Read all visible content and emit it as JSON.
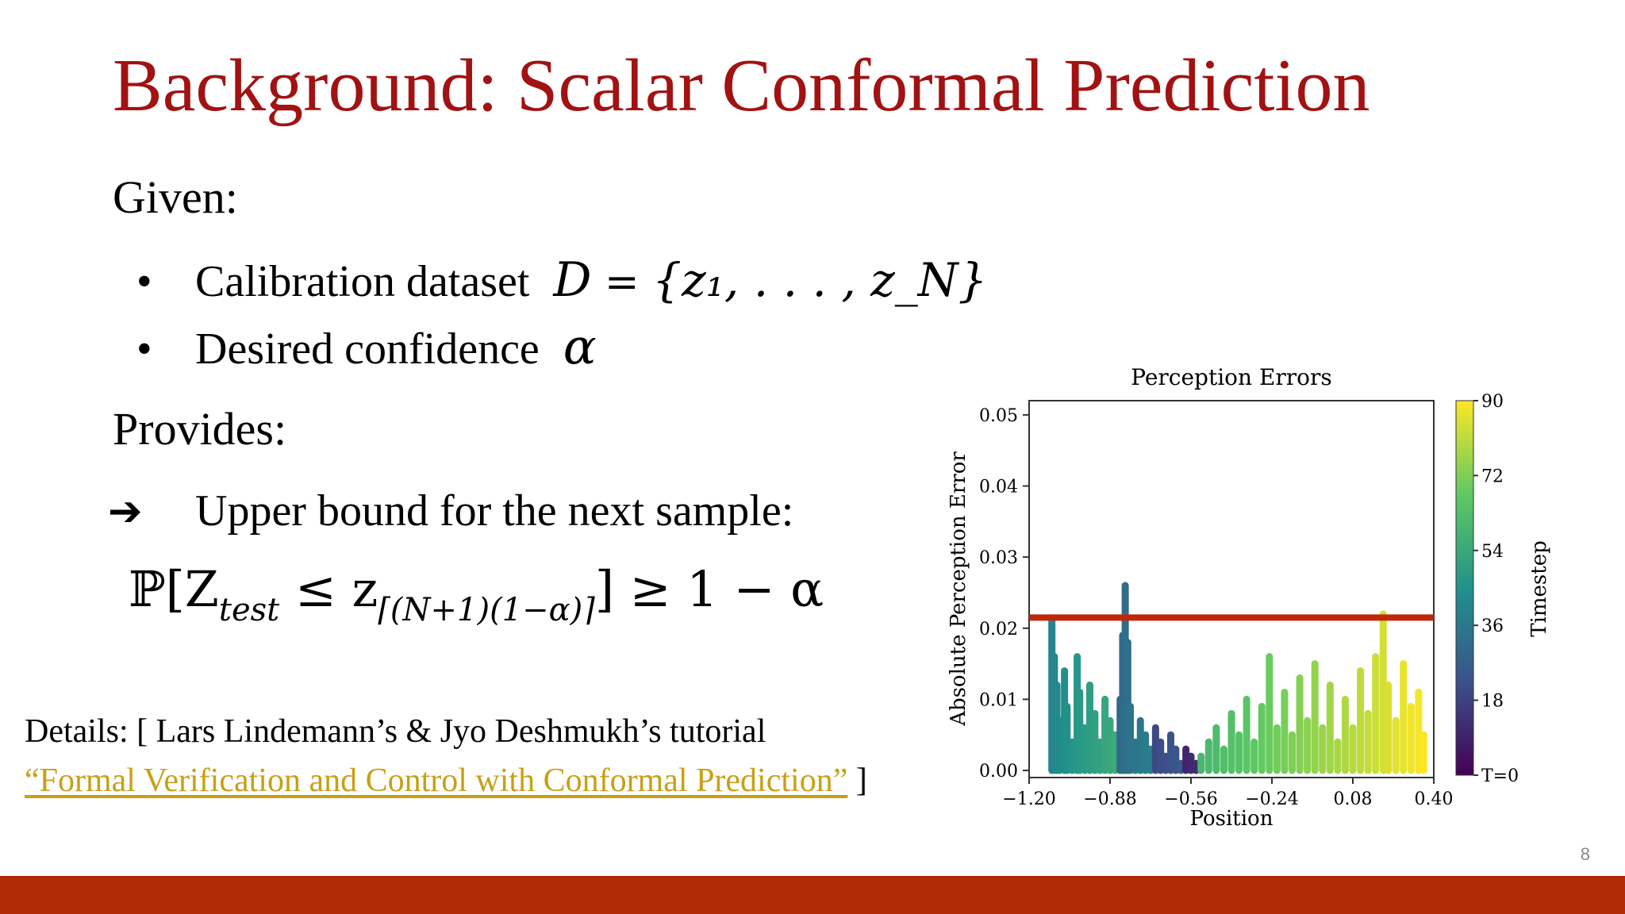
{
  "slide": {
    "title": "Background: Scalar Conformal Prediction",
    "given_label": "Given:",
    "bullet_char": "•",
    "bullet1_text": "Calibration dataset",
    "bullet1_math_D": "D",
    "bullet1_math_eq": " = ",
    "bullet1_math_set": "{z₁, . . . , z_N}",
    "bullet2_text": "Desired confidence",
    "bullet2_math": "α",
    "provides_label": "Provides:",
    "arrow_char": "➔",
    "arrow_text": "Upper bound for the next sample:",
    "formula_main": "ℙ[Z",
    "formula_sub1": "test",
    "formula_mid": " ≤ z",
    "formula_sub2": "⌈(N+1)(1−α)⌉",
    "formula_end": "] ≥ 1 − α",
    "details_line1": "Details: [ Lars Lindemann’s & Jyo Deshmukh’s tutorial",
    "details_link": "“Formal Verification and Control with Conformal Prediction”",
    "details_end": " ]",
    "page_number": "8"
  },
  "colors": {
    "title": "#a21212",
    "link": "#c8a016",
    "footer_bar": "#b02a05",
    "threshold_line": "#c0280a"
  },
  "chart_data": {
    "type": "scatter",
    "title": "Perception Errors",
    "xlabel": "Position",
    "ylabel": "Absolute Perception Error",
    "xlim": [
      -1.2,
      0.4
    ],
    "ylim": [
      -0.001,
      0.052
    ],
    "xticks": [
      "−1.20",
      "−0.88",
      "−0.56",
      "−0.24",
      "0.08",
      "0.40"
    ],
    "xtick_values": [
      -1.2,
      -0.88,
      -0.56,
      -0.24,
      0.08,
      0.4
    ],
    "yticks": [
      "0.00",
      "0.01",
      "0.02",
      "0.03",
      "0.04",
      "0.05"
    ],
    "ytick_values": [
      0.0,
      0.01,
      0.02,
      0.03,
      0.04,
      0.05
    ],
    "threshold": 0.0215,
    "colorbar": {
      "label": "Timestep",
      "ticks": [
        "T=0",
        "18",
        "36",
        "54",
        "72",
        "90"
      ],
      "tick_values": [
        0,
        18,
        36,
        54,
        72,
        90
      ],
      "colormap": "viridis"
    },
    "series": [
      {
        "points": [
          {
            "x": -1.11,
            "y": 0.021,
            "t": 40
          },
          {
            "x": -1.1,
            "y": 0.016,
            "t": 41
          },
          {
            "x": -1.09,
            "y": 0.012,
            "t": 42
          },
          {
            "x": -1.08,
            "y": 0.007,
            "t": 43
          },
          {
            "x": -1.06,
            "y": 0.014,
            "t": 44
          },
          {
            "x": -1.05,
            "y": 0.009,
            "t": 45
          },
          {
            "x": -1.03,
            "y": 0.004,
            "t": 46
          },
          {
            "x": -1.01,
            "y": 0.016,
            "t": 47
          },
          {
            "x": -1.0,
            "y": 0.011,
            "t": 48
          },
          {
            "x": -0.98,
            "y": 0.006,
            "t": 49
          },
          {
            "x": -0.96,
            "y": 0.012,
            "t": 50
          },
          {
            "x": -0.94,
            "y": 0.008,
            "t": 51
          },
          {
            "x": -0.92,
            "y": 0.004,
            "t": 52
          },
          {
            "x": -0.9,
            "y": 0.01,
            "t": 53
          },
          {
            "x": -0.88,
            "y": 0.007,
            "t": 54
          },
          {
            "x": -0.86,
            "y": 0.005,
            "t": 55
          },
          {
            "x": -0.84,
            "y": 0.01,
            "t": 30
          },
          {
            "x": -0.83,
            "y": 0.019,
            "t": 31
          },
          {
            "x": -0.82,
            "y": 0.026,
            "t": 32
          },
          {
            "x": -0.81,
            "y": 0.018,
            "t": 33
          },
          {
            "x": -0.8,
            "y": 0.009,
            "t": 34
          },
          {
            "x": -0.78,
            "y": 0.004,
            "t": 35
          },
          {
            "x": -0.76,
            "y": 0.007,
            "t": 36
          },
          {
            "x": -0.74,
            "y": 0.005,
            "t": 37
          },
          {
            "x": -0.72,
            "y": 0.003,
            "t": 38
          },
          {
            "x": -0.7,
            "y": 0.006,
            "t": 20
          },
          {
            "x": -0.68,
            "y": 0.004,
            "t": 21
          },
          {
            "x": -0.66,
            "y": 0.002,
            "t": 22
          },
          {
            "x": -0.64,
            "y": 0.005,
            "t": 23
          },
          {
            "x": -0.62,
            "y": 0.003,
            "t": 24
          },
          {
            "x": -0.6,
            "y": 0.001,
            "t": 25
          },
          {
            "x": -0.58,
            "y": 0.003,
            "t": 10
          },
          {
            "x": -0.56,
            "y": 0.002,
            "t": 11
          },
          {
            "x": -0.54,
            "y": 0.001,
            "t": 12
          },
          {
            "x": -0.52,
            "y": 0.002,
            "t": 60
          },
          {
            "x": -0.49,
            "y": 0.004,
            "t": 61
          },
          {
            "x": -0.46,
            "y": 0.006,
            "t": 62
          },
          {
            "x": -0.43,
            "y": 0.003,
            "t": 63
          },
          {
            "x": -0.4,
            "y": 0.008,
            "t": 64
          },
          {
            "x": -0.37,
            "y": 0.005,
            "t": 65
          },
          {
            "x": -0.34,
            "y": 0.01,
            "t": 66
          },
          {
            "x": -0.31,
            "y": 0.004,
            "t": 67
          },
          {
            "x": -0.28,
            "y": 0.009,
            "t": 68
          },
          {
            "x": -0.25,
            "y": 0.016,
            "t": 69
          },
          {
            "x": -0.22,
            "y": 0.006,
            "t": 70
          },
          {
            "x": -0.19,
            "y": 0.011,
            "t": 71
          },
          {
            "x": -0.16,
            "y": 0.005,
            "t": 72
          },
          {
            "x": -0.13,
            "y": 0.013,
            "t": 73
          },
          {
            "x": -0.1,
            "y": 0.007,
            "t": 74
          },
          {
            "x": -0.07,
            "y": 0.015,
            "t": 75
          },
          {
            "x": -0.04,
            "y": 0.006,
            "t": 76
          },
          {
            "x": -0.01,
            "y": 0.012,
            "t": 77
          },
          {
            "x": 0.02,
            "y": 0.004,
            "t": 78
          },
          {
            "x": 0.05,
            "y": 0.01,
            "t": 79
          },
          {
            "x": 0.08,
            "y": 0.006,
            "t": 80
          },
          {
            "x": 0.11,
            "y": 0.014,
            "t": 81
          },
          {
            "x": 0.14,
            "y": 0.008,
            "t": 82
          },
          {
            "x": 0.17,
            "y": 0.016,
            "t": 83
          },
          {
            "x": 0.2,
            "y": 0.022,
            "t": 84
          },
          {
            "x": 0.22,
            "y": 0.012,
            "t": 85
          },
          {
            "x": 0.25,
            "y": 0.007,
            "t": 86
          },
          {
            "x": 0.28,
            "y": 0.015,
            "t": 87
          },
          {
            "x": 0.31,
            "y": 0.009,
            "t": 88
          },
          {
            "x": 0.34,
            "y": 0.011,
            "t": 89
          },
          {
            "x": 0.36,
            "y": 0.005,
            "t": 90
          }
        ]
      }
    ]
  }
}
